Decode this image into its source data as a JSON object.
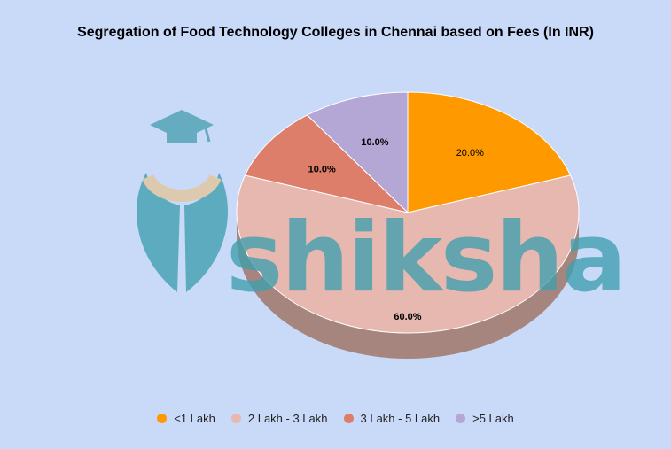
{
  "chart_data": {
    "type": "pie",
    "title": "Segregation of Food Technology Colleges in Chennai based on Fees (In INR)",
    "categories": [
      "<1 Lakh",
      "2 Lakh - 3 Lakh",
      "3 Lakh - 5 Lakh",
      ">5 Lakh"
    ],
    "values": [
      20.0,
      60.0,
      10.0,
      10.0
    ],
    "labels": [
      "20.0%",
      "60.0%",
      "10.0%",
      "10.0%"
    ],
    "colors": [
      "#ff9900",
      "#e6b8af",
      "#dd7e6b",
      "#b4a7d6"
    ],
    "legend_position": "bottom",
    "three_d": true
  },
  "watermark": {
    "text": "shiksha",
    "color": "#3f9fae"
  }
}
